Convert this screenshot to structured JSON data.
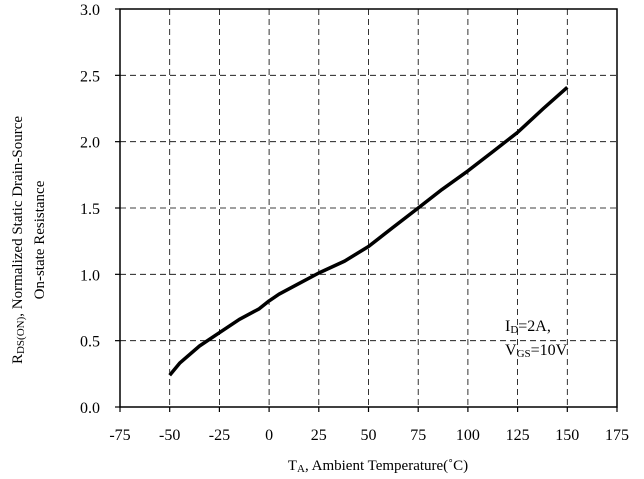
{
  "chart_data": {
    "type": "line",
    "xlim": [
      -75,
      175
    ],
    "ylim": [
      0.0,
      3.0
    ],
    "x_ticks": [
      "-75",
      "-50",
      "-25",
      "0",
      "25",
      "50",
      "75",
      "100",
      "125",
      "150",
      "175"
    ],
    "y_ticks": [
      "0.0",
      "0.5",
      "1.0",
      "1.5",
      "2.0",
      "2.5",
      "3.0"
    ],
    "grid": "dashed",
    "xlabel": {
      "main": "T",
      "sub": "A",
      "rest": ", Ambient Temperature(˚C)"
    },
    "ylabel": {
      "line1_main": "R",
      "line1_sub": "DS(ON)",
      "line1_rest": ", Normalized Static Drain-Source",
      "line2": "On-state Resistance"
    },
    "annotation": {
      "line1_main": "I",
      "line1_sub": "D",
      "line1_rest": "=2A,",
      "line2_main": "V",
      "line2_sub": "GS",
      "line2_rest": "=10V"
    },
    "series": [
      {
        "x": [
          -50,
          -45,
          -35,
          -25,
          -15,
          -5,
          0,
          5,
          15,
          25,
          38,
          50,
          62,
          75,
          87,
          100,
          113,
          125,
          138,
          150
        ],
        "y": [
          0.24,
          0.33,
          0.46,
          0.56,
          0.66,
          0.74,
          0.8,
          0.85,
          0.93,
          1.01,
          1.1,
          1.21,
          1.35,
          1.5,
          1.64,
          1.78,
          1.93,
          2.07,
          2.25,
          2.41
        ]
      }
    ]
  }
}
